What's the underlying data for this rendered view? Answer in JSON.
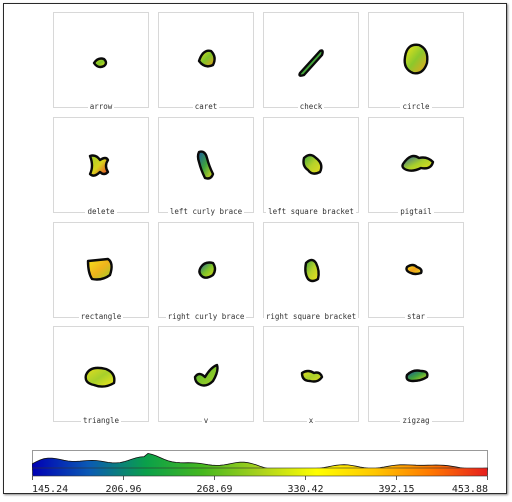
{
  "gestures": [
    {
      "label": "arrow",
      "colors": [
        "#e0de1d",
        "#7cc428",
        "#f2e21c"
      ]
    },
    {
      "label": "caret",
      "colors": [
        "#e6dc1f",
        "#7ec42a",
        "#f39a1a"
      ]
    },
    {
      "label": "check",
      "colors": [
        "#1a56a6",
        "#3fa33b",
        "#c9d82a"
      ]
    },
    {
      "label": "circle",
      "colors": [
        "#f3e61b",
        "#8cc82c",
        "#f3a21c"
      ]
    },
    {
      "label": "delete",
      "colors": [
        "#9ccd2a",
        "#d8d31d",
        "#e8342a"
      ]
    },
    {
      "label": "left curly brace",
      "colors": [
        "#1c5aa3",
        "#3fa33d",
        "#e6db1e"
      ]
    },
    {
      "label": "left square bracket",
      "colors": [
        "#3ba83b",
        "#b6d22a",
        "#e6db1e"
      ]
    },
    {
      "label": "pigtail",
      "colors": [
        "#2a64a0",
        "#a7d02b",
        "#f0e11c"
      ]
    },
    {
      "label": "rectangle",
      "colors": [
        "#f3e41b",
        "#f0b41c",
        "#9ccd2a"
      ]
    },
    {
      "label": "right curly brace",
      "colors": [
        "#1d5aa4",
        "#7cc428",
        "#e6db1e"
      ]
    },
    {
      "label": "right square bracket",
      "colors": [
        "#3fa33d",
        "#b6d22a",
        "#f0e11c"
      ]
    },
    {
      "label": "star",
      "colors": [
        "#f3e61b",
        "#f2a01b",
        "#e6db1e"
      ]
    },
    {
      "label": "triangle",
      "colors": [
        "#e6de1e",
        "#a7d02b",
        "#f3e61b"
      ]
    },
    {
      "label": "v",
      "colors": [
        "#3fa33d",
        "#7cc428",
        "#a7d02b"
      ]
    },
    {
      "label": "x",
      "colors": [
        "#e6db1e",
        "#a7d02b",
        "#e6db1e"
      ]
    },
    {
      "label": "zigzag",
      "colors": [
        "#1a4ea8",
        "#3fa33d",
        "#e6db1e"
      ]
    }
  ],
  "colorbar": {
    "tick_labels": [
      "145.24",
      "206.96",
      "268.69",
      "330.42",
      "392.15",
      "453.88"
    ],
    "min": 145.24,
    "max": 453.88,
    "colors": [
      "#0000b4",
      "#0a5ab4",
      "#0aa04a",
      "#46b81e",
      "#aad21e",
      "#ffff00",
      "#ffc800",
      "#ff7800",
      "#e61e1e"
    ]
  }
}
